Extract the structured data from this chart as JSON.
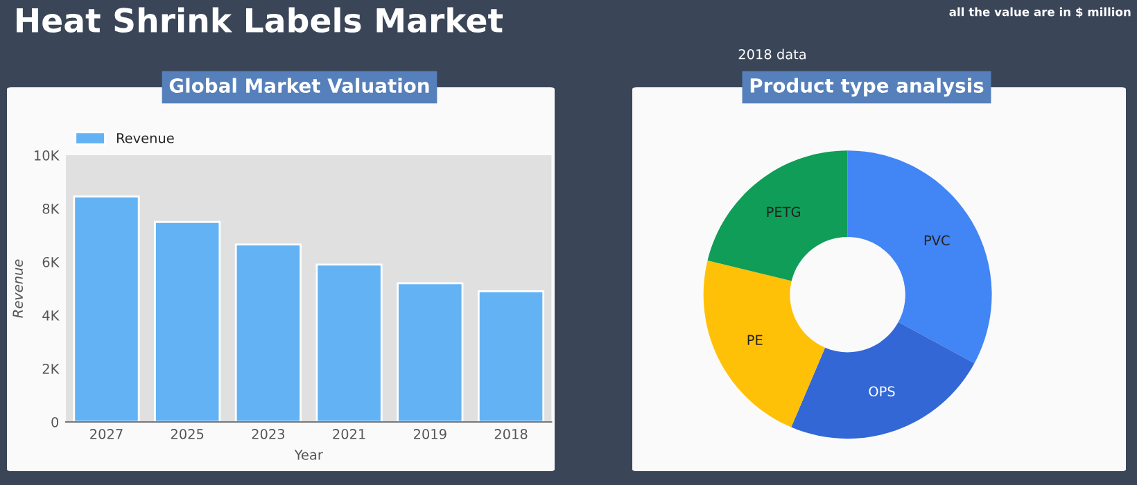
{
  "chart_data": [
    {
      "type": "bar",
      "title": "Global Market Valuation",
      "xlabel": "Year",
      "ylabel": "Revenue",
      "categories": [
        "2027",
        "2025",
        "2023",
        "2021",
        "2019",
        "2018"
      ],
      "series": [
        {
          "name": "Revenue",
          "color": "#63b3f4",
          "values": [
            8450,
            7500,
            6650,
            5900,
            5200,
            4900
          ]
        }
      ],
      "ylim": [
        0,
        10000
      ],
      "yticks": [
        0,
        {
          "value": 2000,
          "label": "2K"
        },
        {
          "value": 4000,
          "label": "4K"
        },
        {
          "value": 6000,
          "label": "6K"
        },
        {
          "value": 8000,
          "label": "8K"
        },
        {
          "value": 10000,
          "label": "10K"
        }
      ],
      "grid": false,
      "legend": "top left",
      "annotations": [
        "Heat Shrink Labels Market",
        "all the value are in $ million"
      ]
    },
    {
      "type": "donut",
      "title": "Product type analysis",
      "categories": [
        "PVC",
        "OPS",
        "PE",
        "PETG"
      ],
      "values": [
        32.9,
        23.5,
        22.4,
        21.2
      ],
      "colors": [
        "#4285f4",
        "#3367d6",
        "#ffc107",
        "#0f9d58"
      ],
      "annotations": [
        "2018 data"
      ]
    }
  ]
}
